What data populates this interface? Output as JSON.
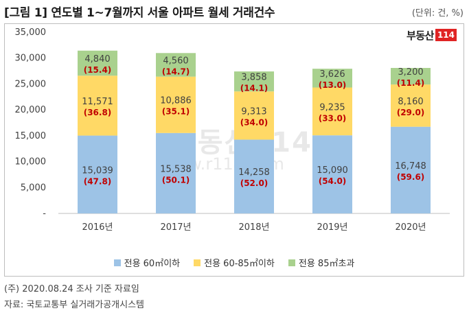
{
  "title": "[그림 1] 연도별 1~7월까지 서울 아파트 월세 거래건수",
  "unit": "(단위: 건, %)",
  "logo": {
    "text": "부동산",
    "num": "114"
  },
  "watermark": {
    "text": "부동산114",
    "url": "www.r114.com"
  },
  "chart_data": {
    "type": "bar",
    "stacked": true,
    "categories": [
      "2016년",
      "2017년",
      "2018년",
      "2019년",
      "2020년"
    ],
    "series": [
      {
        "name": "전용 60㎡이하",
        "color": "#9dc3e6",
        "values": [
          15039,
          15538,
          14258,
          15090,
          16748
        ],
        "value_labels": [
          "15,039",
          "15,538",
          "14,258",
          "15,090",
          "16,748"
        ],
        "pct_labels": [
          "(47.8)",
          "(50.1)",
          "(52.0)",
          "(54.0)",
          "(59.6)"
        ]
      },
      {
        "name": "전용 60-85㎡이하",
        "color": "#ffd966",
        "values": [
          11571,
          10886,
          9313,
          9235,
          8160
        ],
        "value_labels": [
          "11,571",
          "10,886",
          "9,313",
          "9,235",
          "8,160"
        ],
        "pct_labels": [
          "(36.8)",
          "(35.1)",
          "(34.0)",
          "(33.0)",
          "(29.0)"
        ]
      },
      {
        "name": "전용 85㎡초과",
        "color": "#a9d18e",
        "values": [
          4840,
          4560,
          3858,
          3626,
          3200
        ],
        "value_labels": [
          "4,840",
          "4,560",
          "3,858",
          "3,626",
          "3,200"
        ],
        "pct_labels": [
          "(15.4)",
          "(14.7)",
          "(14.1)",
          "(13.0)",
          "(11.4)"
        ]
      }
    ],
    "ylim": [
      0,
      35000
    ],
    "yticks": [
      0,
      5000,
      10000,
      15000,
      20000,
      25000,
      30000,
      35000
    ],
    "ytick_labels": [
      "-",
      "5,000",
      "10,000",
      "15,000",
      "20,000",
      "25,000",
      "30,000",
      "35,000"
    ],
    "pct_color": "#c00000",
    "grid": false,
    "legend_position": "bottom"
  },
  "notes": {
    "date_note": "(주) 2020.08.24 조사 기준 자료임",
    "source": "자료: 국토교통부 실거래가공개시스템"
  }
}
